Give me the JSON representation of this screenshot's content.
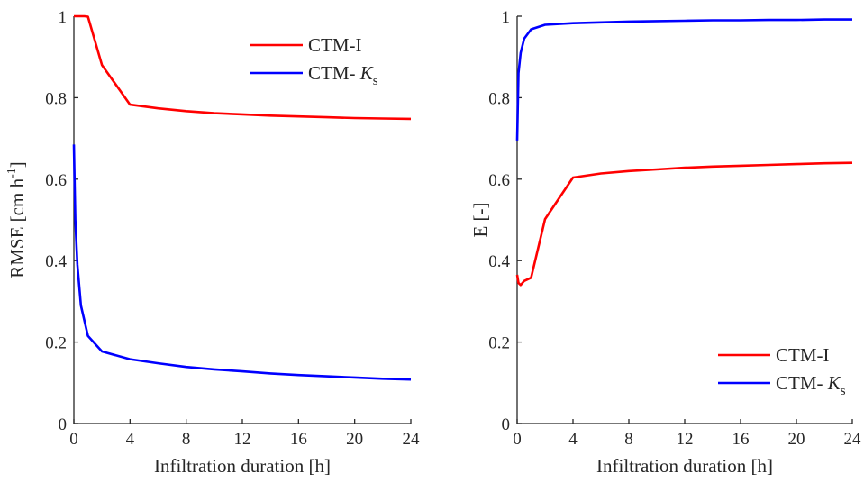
{
  "chart_data": [
    {
      "type": "line",
      "xlabel": "Infiltration duration [h]",
      "ylabel": "RMSE [cm h",
      "ylabel_sup": "-1",
      "ylabel_end": "]",
      "xlim": [
        0,
        24
      ],
      "ylim": [
        0,
        1
      ],
      "xticks": [
        "0",
        "4",
        "8",
        "12",
        "16",
        "20",
        "24"
      ],
      "yticks": [
        "0",
        "0.2",
        "0.4",
        "0.6",
        "0.8",
        "1"
      ],
      "legend_position": "top-right",
      "grid": false,
      "series": [
        {
          "name": "CTM-I",
          "legend_main": "CTM-I",
          "legend_italic": "",
          "legend_sub": "",
          "color": "#ff0000",
          "x": [
            0,
            0.25,
            0.5,
            0.75,
            1,
            2,
            4,
            6,
            8,
            10,
            12,
            14,
            16,
            18,
            20,
            22,
            24
          ],
          "y": [
            1.0,
            1.0,
            1.0,
            1.0,
            0.999,
            0.88,
            0.783,
            0.774,
            0.767,
            0.762,
            0.759,
            0.756,
            0.754,
            0.752,
            0.75,
            0.749,
            0.748
          ]
        },
        {
          "name": "CTM- Ks",
          "legend_main": "CTM- ",
          "legend_italic": "K",
          "legend_sub": "s",
          "color": "#0000ff",
          "x": [
            0,
            0.1,
            0.25,
            0.5,
            1,
            2,
            4,
            6,
            8,
            10,
            12,
            14,
            16,
            18,
            20,
            22,
            24
          ],
          "y": [
            0.685,
            0.5,
            0.39,
            0.29,
            0.215,
            0.177,
            0.158,
            0.148,
            0.139,
            0.133,
            0.128,
            0.123,
            0.119,
            0.116,
            0.113,
            0.11,
            0.108
          ]
        }
      ]
    },
    {
      "type": "line",
      "xlabel": "Infiltration duration [h]",
      "ylabel": "E [-]",
      "ylabel_sup": "",
      "ylabel_end": "",
      "xlim": [
        0,
        24
      ],
      "ylim": [
        0,
        1
      ],
      "xticks": [
        "0",
        "4",
        "8",
        "12",
        "16",
        "20",
        "24"
      ],
      "yticks": [
        "0",
        "0.2",
        "0.4",
        "0.6",
        "0.8",
        "1"
      ],
      "legend_position": "bottom-right",
      "grid": false,
      "series": [
        {
          "name": "CTM-I",
          "legend_main": "CTM-I",
          "legend_italic": "",
          "legend_sub": "",
          "color": "#ff0000",
          "x": [
            0,
            0.1,
            0.25,
            0.5,
            1,
            2,
            4,
            6,
            8,
            10,
            12,
            14,
            16,
            18,
            20,
            22,
            24
          ],
          "y": [
            0.365,
            0.345,
            0.34,
            0.35,
            0.358,
            0.502,
            0.604,
            0.614,
            0.62,
            0.624,
            0.628,
            0.631,
            0.633,
            0.635,
            0.637,
            0.639,
            0.64
          ]
        },
        {
          "name": "CTM- Ks",
          "legend_main": "CTM- ",
          "legend_italic": "K",
          "legend_sub": "s",
          "color": "#0000ff",
          "x": [
            0,
            0.1,
            0.25,
            0.5,
            1,
            2,
            4,
            6,
            8,
            10,
            12,
            14,
            16,
            18,
            20,
            22,
            24
          ],
          "y": [
            0.695,
            0.86,
            0.91,
            0.945,
            0.968,
            0.979,
            0.983,
            0.985,
            0.987,
            0.988,
            0.989,
            0.99,
            0.99,
            0.991,
            0.991,
            0.992,
            0.992
          ]
        }
      ]
    }
  ]
}
